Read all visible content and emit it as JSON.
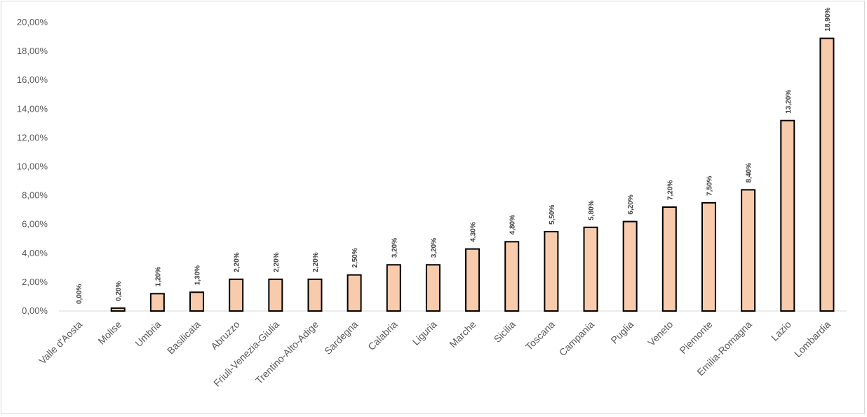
{
  "chart_data": {
    "type": "bar",
    "title": "",
    "xlabel": "",
    "ylabel": "",
    "ylim": [
      0,
      20
    ],
    "y_ticks": [
      "0,00%",
      "2,00%",
      "4,00%",
      "6,00%",
      "8,00%",
      "10,00%",
      "12,00%",
      "14,00%",
      "16,00%",
      "18,00%",
      "20,00%"
    ],
    "categories": [
      "Valle d'Aosta",
      "Molise",
      "Umbria",
      "Basilicata",
      "Abruzzo",
      "Friuli-Venezia-Giulia",
      "Trentino-Alto-Adige",
      "Sardegna",
      "Calabria",
      "Liguria",
      "Marche",
      "Sicilia",
      "Toscana",
      "Campania",
      "Puglia",
      "Veneto",
      "Piemonte",
      "Emilia-Romagna",
      "Lazio",
      "Lombardia"
    ],
    "values": [
      0.0,
      0.2,
      1.2,
      1.3,
      2.2,
      2.2,
      2.2,
      2.5,
      3.2,
      3.2,
      4.3,
      4.8,
      5.5,
      5.8,
      6.2,
      7.2,
      7.5,
      8.4,
      13.2,
      18.9
    ],
    "data_labels": [
      "0,00%",
      "0,20%",
      "1,20%",
      "1,30%",
      "2,20%",
      "2,20%",
      "2,20%",
      "2,50%",
      "3,20%",
      "3,20%",
      "4,30%",
      "4,80%",
      "5,50%",
      "5,80%",
      "6,20%",
      "7,20%",
      "7,50%",
      "8,40%",
      "13,20%",
      "18,90%"
    ],
    "grid": false,
    "legend": "none",
    "colors": {
      "bar_fill": "#f8cbad",
      "bar_stroke": "#000000",
      "axis": "#d9d9d9"
    }
  }
}
